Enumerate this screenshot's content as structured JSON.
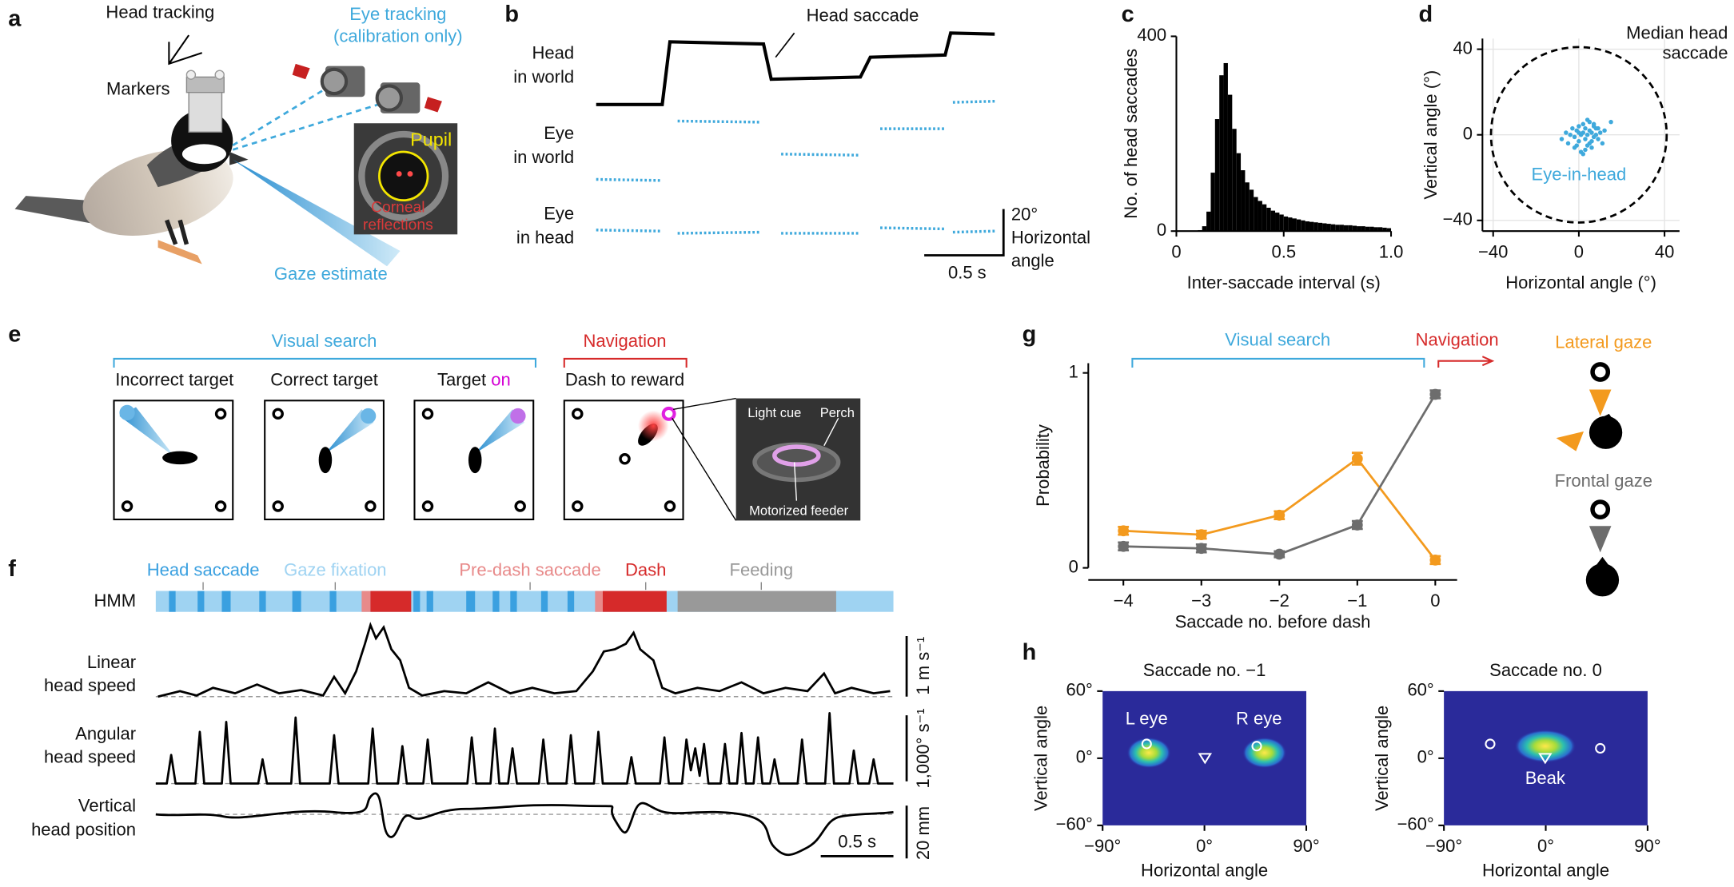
{
  "panel_labels": [
    "a",
    "b",
    "c",
    "d",
    "e",
    "f",
    "g",
    "h"
  ],
  "a": {
    "head_tracking": "Head tracking",
    "markers": "Markers",
    "eye_tracking": [
      "Eye tracking",
      "(calibration only)"
    ],
    "pupil": "Pupil",
    "corneal_reflections": [
      "Corneal",
      "reflections"
    ],
    "gaze_estimate": "Gaze estimate"
  },
  "b": {
    "annotation": "Head saccade",
    "rows": [
      [
        "Head",
        "in world"
      ],
      [
        "Eye",
        "in world"
      ],
      [
        "Eye",
        "in head"
      ]
    ],
    "scale_angle": "20°",
    "scale_angle_label": [
      "Horizontal",
      "angle"
    ],
    "scale_time": "0.5 s"
  },
  "e": {
    "visual_search": "Visual search",
    "navigation": "Navigation",
    "steps": [
      "Incorrect target",
      "Correct target",
      "Target",
      "Dash to reward"
    ],
    "target_on": "on",
    "inset": {
      "light_cue": "Light cue",
      "perch": "Perch",
      "feeder": "Motorized feeder"
    }
  },
  "f": {
    "states": [
      "Head saccade",
      "Gaze fixation",
      "Pre-dash saccade",
      "Dash",
      "Feeding"
    ],
    "hmm": "HMM",
    "rows": [
      [
        "Linear",
        "head speed"
      ],
      [
        "Angular",
        "head speed"
      ],
      [
        "Vertical",
        "head position"
      ]
    ],
    "scales": [
      "1 m s⁻¹",
      "1,000° s⁻¹",
      "20 mm"
    ],
    "scale_time": "0.5 s"
  },
  "g": {
    "visual_search": "Visual search",
    "navigation": "Navigation"
  },
  "h": {
    "left_eye": "L eye",
    "right_eye": "R eye",
    "beak": "Beak"
  },
  "chart_data": [
    {
      "type": "histogram",
      "x_label": "Inter-saccade interval (s)",
      "y_label": "No. of head saccades",
      "color": "#000000",
      "bins": [
        0.1,
        0.12,
        0.14,
        0.16,
        0.18,
        0.2,
        0.22,
        0.24,
        0.26,
        0.28,
        0.3,
        0.32,
        0.34,
        0.36,
        0.38,
        0.4,
        0.42,
        0.44,
        0.46,
        0.48,
        0.5,
        0.52,
        0.54,
        0.56,
        0.58,
        0.6,
        0.62,
        0.64,
        0.66,
        0.68,
        0.7,
        0.72,
        0.74,
        0.76,
        0.78,
        0.8,
        0.82,
        0.84,
        0.86,
        0.88,
        0.9,
        0.92,
        0.94,
        0.96,
        0.98,
        1.0
      ],
      "values": [
        2,
        10,
        40,
        120,
        230,
        320,
        345,
        280,
        210,
        160,
        125,
        100,
        85,
        70,
        62,
        55,
        48,
        42,
        38,
        34,
        30,
        28,
        26,
        24,
        22,
        20,
        19,
        18,
        17,
        16,
        15,
        14,
        13,
        13,
        12,
        12,
        11,
        10,
        10,
        9,
        9,
        8,
        8,
        7,
        6
      ],
      "xlim": [
        0,
        1.0
      ],
      "xticks": [
        0,
        0.5,
        {
          "value": 1,
          "label": "1.0"
        }
      ],
      "ylim": [
        0,
        400
      ],
      "yticks": [
        0,
        400
      ]
    },
    {
      "type": "scatter",
      "x_label": "Horizontal angle (°)",
      "y_label": "Vertical angle (°)",
      "grid": true,
      "xlim": [
        -45,
        47
      ],
      "ylim": [
        -45,
        45
      ],
      "xticks": [
        {
          "value": -40,
          "label": "−40"
        },
        0,
        40
      ],
      "yticks": [
        {
          "value": -40,
          "label": "−40"
        },
        0,
        40
      ],
      "circle": {
        "label": [
          "Median head",
          "saccade"
        ],
        "radius": 41
      },
      "series": [
        {
          "name": "Eye-in-head",
          "color": "#3fa9dc",
          "x": [
            -8,
            -6,
            -5,
            -4,
            -3,
            -2,
            -2,
            -1,
            0,
            0,
            1,
            1,
            2,
            2,
            3,
            3,
            4,
            4,
            5,
            5,
            6,
            6,
            7,
            7,
            8,
            8,
            9,
            10,
            11,
            12,
            2,
            4,
            6,
            -1,
            3,
            5,
            7,
            0,
            9,
            15
          ],
          "y": [
            -2,
            1,
            -4,
            0,
            3,
            -1,
            -6,
            2,
            -3,
            4,
            0,
            -8,
            1,
            5,
            -2,
            3,
            -5,
            0,
            2,
            6,
            -3,
            1,
            4,
            -1,
            0,
            3,
            -2,
            1,
            -4,
            2,
            -9,
            7,
            -6,
            -5,
            -7,
            -4,
            5,
            1,
            3,
            6
          ]
        }
      ]
    },
    {
      "type": "line",
      "x_label": "Saccade no. before dash",
      "y_label": "Probability",
      "x": [
        -4,
        -3,
        -2,
        -1,
        0
      ],
      "xlim": [
        -4.45,
        0.28
      ],
      "xticks": [
        {
          "value": -4,
          "label": "−4"
        },
        {
          "value": -3,
          "label": "−3"
        },
        {
          "value": -2,
          "label": "−2"
        },
        {
          "value": -1,
          "label": "−1"
        },
        0
      ],
      "ylim": [
        0,
        1.05
      ],
      "yticks": [
        0,
        1
      ],
      "series": [
        {
          "name": "Lateral gaze",
          "color": "#f39a1e",
          "values": [
            0.19,
            0.17,
            0.27,
            0.56,
            0.04
          ],
          "errors": [
            0.02,
            0.02,
            0.02,
            0.03,
            0.02
          ]
        },
        {
          "name": "Frontal gaze",
          "color": "#6d6d6d",
          "values": [
            0.11,
            0.1,
            0.07,
            0.22,
            0.89
          ],
          "errors": [
            0.02,
            0.02,
            0.015,
            0.02,
            0.02
          ]
        }
      ]
    },
    {
      "type": "heatmap",
      "title": "Saccade no. −1",
      "x_label": "Horizontal angle",
      "y_label": "Vertical angle",
      "xlim": [
        -90,
        90
      ],
      "ylim": [
        -60,
        60
      ],
      "xticks": [
        {
          "value": -90,
          "label": "−90°"
        },
        {
          "value": 0,
          "label": "0°"
        },
        {
          "value": 90,
          "label": "90°"
        }
      ],
      "yticks": [
        {
          "value": 60,
          "label": "60°"
        },
        {
          "value": 0,
          "label": "0°"
        },
        {
          "value": -60,
          "label": "−60°"
        }
      ]
    },
    {
      "type": "heatmap",
      "title": "Saccade no. 0",
      "x_label": "Horizontal angle",
      "y_label": "Vertical angle",
      "xlim": [
        -90,
        90
      ],
      "ylim": [
        -60,
        60
      ],
      "xticks": [
        {
          "value": -90,
          "label": "−90°"
        },
        {
          "value": 0,
          "label": "0°"
        },
        {
          "value": 90,
          "label": "90°"
        }
      ],
      "yticks": [
        {
          "value": 60,
          "label": "60°"
        },
        {
          "value": 0,
          "label": "0°"
        },
        {
          "value": -60,
          "label": "−60°"
        }
      ]
    }
  ]
}
